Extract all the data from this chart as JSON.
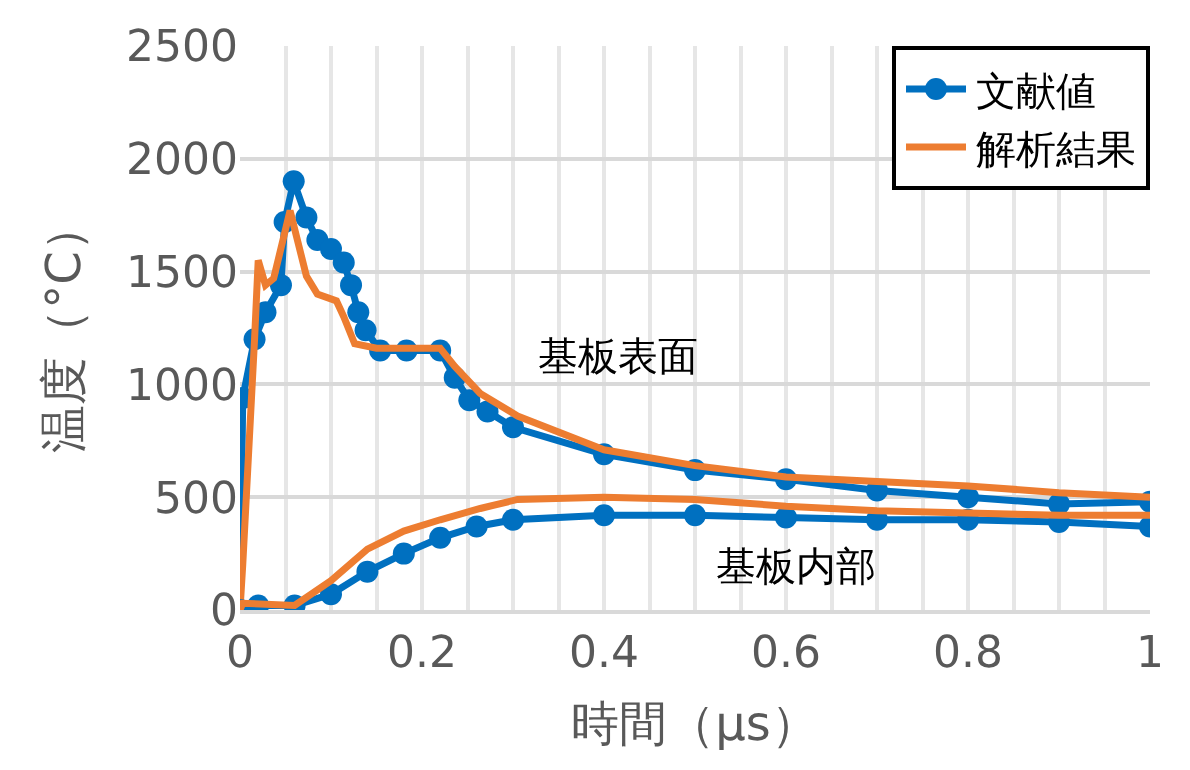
{
  "chart_data": {
    "type": "line",
    "xlabel": "時間（μs）",
    "ylabel": "温度（°C）",
    "xlim": [
      0,
      1
    ],
    "xticks": [
      0,
      0.2,
      0.4,
      0.6,
      0.8,
      1
    ],
    "ylim": [
      0,
      2500
    ],
    "yticks": [
      0,
      500,
      1000,
      1500,
      2000,
      2500
    ],
    "grid": true,
    "legend": "top right",
    "series": [
      {
        "name": "文献値",
        "color": "#0070c0",
        "marker": "circle",
        "x": [
          0,
          0.003,
          0.016,
          0.028,
          0.045,
          0.049,
          0.059,
          0.073,
          0.085,
          0.1,
          0.114,
          0.122,
          0.13,
          0.138,
          0.154,
          0.183,
          0.22,
          0.236,
          0.252,
          0.272,
          0.3,
          0.4,
          0.5,
          0.6,
          0.7,
          0.8,
          0.9,
          1.0
        ],
        "values": [
          0,
          940,
          1200,
          1320,
          1440,
          1720,
          1900,
          1740,
          1640,
          1600,
          1540,
          1440,
          1320,
          1240,
          1150,
          1150,
          1150,
          1030,
          930,
          880,
          810,
          690,
          620,
          580,
          530,
          500,
          470,
          480
        ]
      },
      {
        "name": "解析結果",
        "color": "#ed7d31",
        "marker": "none",
        "x": [
          0,
          0.003,
          0.016,
          0.02,
          0.028,
          0.037,
          0.055,
          0.073,
          0.085,
          0.106,
          0.114,
          0.126,
          0.15,
          0.22,
          0.236,
          0.264,
          0.305,
          0.4,
          0.5,
          0.6,
          0.7,
          0.8,
          0.9,
          1.0
        ],
        "values": [
          0,
          200,
          1200,
          1550,
          1440,
          1470,
          1770,
          1480,
          1400,
          1370,
          1300,
          1180,
          1160,
          1160,
          1080,
          960,
          860,
          710,
          640,
          590,
          570,
          550,
          520,
          500
        ]
      },
      {
        "color": "#0070c0",
        "marker": "circle",
        "x": [
          0,
          0.02,
          0.06,
          0.1,
          0.14,
          0.18,
          0.22,
          0.26,
          0.3,
          0.4,
          0.5,
          0.6,
          0.7,
          0.8,
          0.9,
          1.0
        ],
        "values": [
          0,
          20,
          20,
          70,
          170,
          250,
          320,
          370,
          400,
          420,
          420,
          410,
          400,
          400,
          390,
          370
        ]
      },
      {
        "color": "#ed7d31",
        "marker": "none",
        "x": [
          0,
          0.003,
          0.06,
          0.1,
          0.14,
          0.18,
          0.22,
          0.264,
          0.305,
          0.4,
          0.5,
          0.6,
          0.7,
          0.8,
          0.9,
          1.0
        ],
        "values": [
          0,
          30,
          20,
          130,
          270,
          350,
          400,
          450,
          490,
          500,
          490,
          460,
          440,
          430,
          420,
          420
        ]
      }
    ],
    "annotations": [
      "基板表面",
      "基板内部"
    ]
  }
}
